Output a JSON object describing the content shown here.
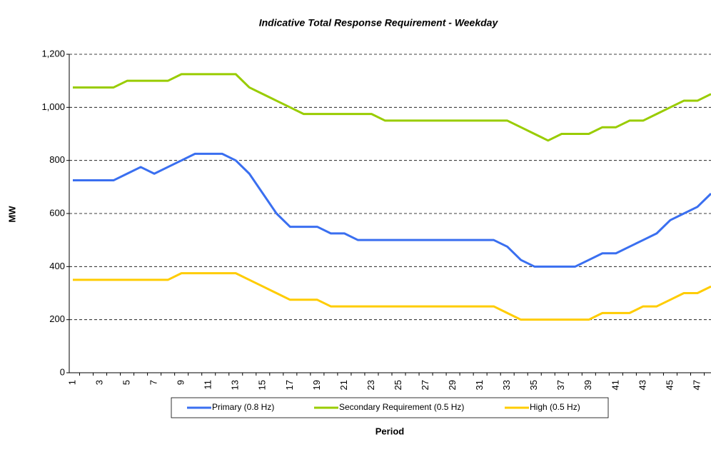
{
  "chart_data": {
    "type": "line",
    "title": "Indicative Total Response Requirement - Weekday",
    "x_label": "Period",
    "y_label": "MW",
    "categories": [
      "1",
      null,
      "3",
      null,
      "5",
      null,
      "7",
      null,
      "9",
      null,
      "11",
      null,
      "13",
      null,
      "15",
      null,
      "17",
      null,
      "19",
      null,
      "21",
      null,
      "23",
      null,
      "25",
      null,
      "27",
      null,
      "29",
      null,
      "31",
      null,
      "33",
      null,
      "35",
      null,
      "37",
      null,
      "39",
      null,
      "41",
      null,
      "43",
      null,
      "45",
      null,
      "47",
      null
    ],
    "series": [
      {
        "name": "Primary (0.8 Hz)",
        "color": "#3a6ff0",
        "values": [
          725,
          725,
          725,
          725,
          750,
          775,
          750,
          775,
          800,
          825,
          825,
          825,
          800,
          750,
          675,
          600,
          550,
          550,
          550,
          525,
          525,
          500,
          500,
          500,
          500,
          500,
          500,
          500,
          500,
          500,
          500,
          500,
          475,
          425,
          400,
          400,
          400,
          400,
          425,
          450,
          450,
          475,
          500,
          525,
          575,
          600,
          625,
          675
        ]
      },
      {
        "name": "Secondary Requirement (0.5 Hz)",
        "color": "#99cc00",
        "values": [
          1075,
          1075,
          1075,
          1075,
          1100,
          1100,
          1100,
          1100,
          1125,
          1125,
          1125,
          1125,
          1125,
          1075,
          1050,
          1025,
          1000,
          975,
          975,
          975,
          975,
          975,
          975,
          950,
          950,
          950,
          950,
          950,
          950,
          950,
          950,
          950,
          950,
          925,
          900,
          875,
          900,
          900,
          900,
          925,
          925,
          950,
          950,
          975,
          1000,
          1025,
          1025,
          1050
        ]
      },
      {
        "name": "High (0.5 Hz)",
        "color": "#ffcc00",
        "values": [
          350,
          350,
          350,
          350,
          350,
          350,
          350,
          350,
          375,
          375,
          375,
          375,
          375,
          350,
          325,
          300,
          275,
          275,
          275,
          250,
          250,
          250,
          250,
          250,
          250,
          250,
          250,
          250,
          250,
          250,
          250,
          250,
          225,
          200,
          200,
          200,
          200,
          200,
          200,
          225,
          225,
          225,
          250,
          250,
          275,
          300,
          300,
          325
        ]
      }
    ],
    "ylim": [
      0,
      1200
    ],
    "yticks": [
      0,
      200,
      400,
      600,
      800,
      {
        "value": 1000,
        "label": "1,000"
      },
      {
        "value": 1200,
        "label": "1,200"
      }
    ],
    "grid": true
  }
}
